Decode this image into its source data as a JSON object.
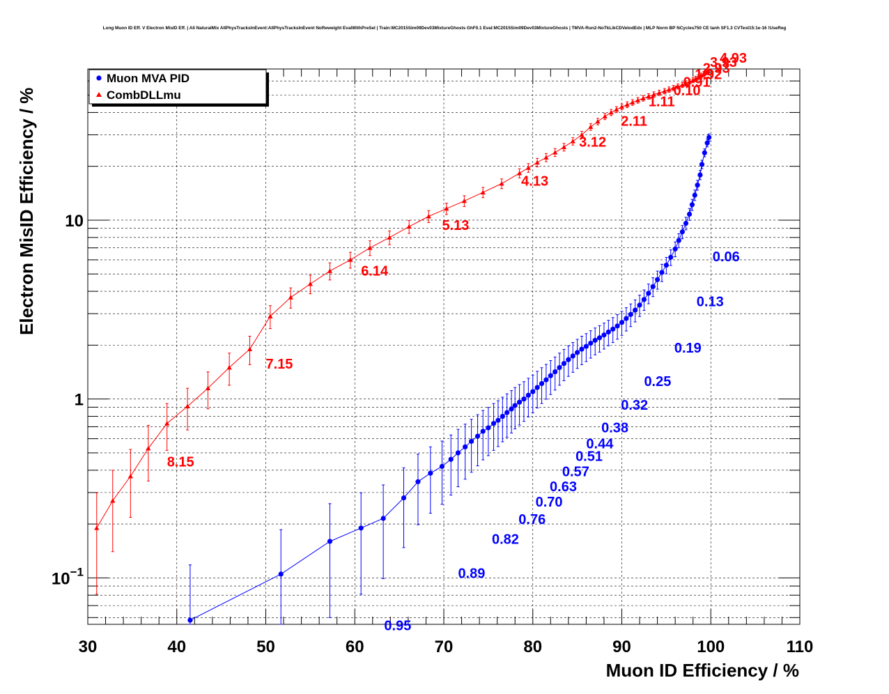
{
  "chart_data": {
    "type": "line",
    "title": "Long Muon ID Eff. V Electron MisID Eff. | All NaturalMix AllPhysTracksInEvent:AllPhysTracksInEvent NoReweight EvalWithPreSel | Train:MC2015Sim09Dev03MixtureGhosts GhF0.1 Eval:MC2015Sim09Dev03MixtureGhosts | TMVA-Run2-NoTkLikCDVelodEdx | MLP Norm BP NCycles750 CE tanh SF1.3 CVTest15:1e-16 !UseReg",
    "xlabel": "Muon ID Efficiency / %",
    "ylabel": "Electron MisID Efficiency / %",
    "xlim": [
      30,
      110
    ],
    "ylim": [
      0.055,
      70
    ],
    "yscale": "log",
    "grid": true,
    "legend_position": "top-left",
    "x_ticks": [
      "30",
      "40",
      "50",
      "60",
      "70",
      "80",
      "90",
      "100",
      "110"
    ],
    "y_ticks": [
      {
        "value": 0.1,
        "label": "10",
        "exp": "−1"
      },
      {
        "value": 1,
        "label": "1",
        "exp": ""
      },
      {
        "value": 10,
        "label": "10",
        "exp": ""
      }
    ],
    "series": [
      {
        "name": "Muon MVA PID",
        "color": "#0000ff",
        "marker": "circle",
        "x": [
          41.5,
          51.7,
          57.2,
          60.7,
          63.2,
          65.5,
          67.1,
          68.5,
          69.8,
          70.8,
          71.6,
          72.4,
          73.1,
          73.8,
          74.4,
          75.0,
          75.6,
          76.1,
          76.6,
          77.1,
          77.6,
          78.0,
          78.5,
          79.0,
          79.5,
          80.0,
          80.5,
          81.0,
          81.5,
          82.0,
          82.5,
          83.0,
          83.5,
          84.0,
          84.5,
          85.0,
          85.5,
          86.0,
          86.5,
          87.0,
          87.5,
          88.0,
          88.5,
          89.0,
          89.5,
          90.0,
          90.5,
          91.0,
          91.5,
          92.0,
          92.5,
          93.0,
          93.5,
          94.0,
          94.5,
          95.0,
          95.5,
          96.0,
          96.4,
          96.8,
          97.2,
          97.6,
          97.9,
          98.2,
          98.5,
          98.8,
          99.0,
          99.3,
          99.6,
          99.8
        ],
        "y": [
          0.058,
          0.105,
          0.16,
          0.19,
          0.215,
          0.28,
          0.345,
          0.385,
          0.42,
          0.46,
          0.5,
          0.54,
          0.58,
          0.62,
          0.66,
          0.69,
          0.73,
          0.76,
          0.8,
          0.84,
          0.88,
          0.92,
          0.96,
          1.0,
          1.05,
          1.1,
          1.16,
          1.22,
          1.28,
          1.35,
          1.42,
          1.5,
          1.58,
          1.66,
          1.74,
          1.82,
          1.9,
          1.97,
          2.05,
          2.13,
          2.2,
          2.28,
          2.37,
          2.46,
          2.56,
          2.68,
          2.82,
          2.97,
          3.14,
          3.35,
          3.6,
          3.9,
          4.25,
          4.65,
          5.1,
          5.6,
          6.2,
          6.9,
          7.7,
          8.6,
          9.6,
          10.8,
          12.2,
          13.8,
          15.7,
          17.9,
          20.5,
          23.8,
          27.0,
          29.0
        ],
        "annotations": [
          {
            "x": 100.2,
            "y": 5.9,
            "text": "0.06"
          },
          {
            "x": 98.4,
            "y": 3.3,
            "text": "0.13"
          },
          {
            "x": 95.9,
            "y": 1.82,
            "text": "0.19"
          },
          {
            "x": 92.5,
            "y": 1.18,
            "text": "0.25"
          },
          {
            "x": 89.9,
            "y": 0.87,
            "text": "0.32"
          },
          {
            "x": 87.7,
            "y": 0.65,
            "text": "0.38"
          },
          {
            "x": 86.0,
            "y": 0.53,
            "text": "0.44"
          },
          {
            "x": 84.8,
            "y": 0.45,
            "text": "0.51"
          },
          {
            "x": 83.3,
            "y": 0.37,
            "text": "0.57"
          },
          {
            "x": 81.9,
            "y": 0.305,
            "text": "0.63"
          },
          {
            "x": 80.3,
            "y": 0.25,
            "text": "0.70"
          },
          {
            "x": 78.4,
            "y": 0.2,
            "text": "0.76"
          },
          {
            "x": 75.4,
            "y": 0.155,
            "text": "0.82"
          },
          {
            "x": 71.6,
            "y": 0.1,
            "text": "0.89"
          },
          {
            "x": 63.3,
            "y": 0.051,
            "text": "0.95"
          }
        ]
      },
      {
        "name": "CombDLLmu",
        "color": "#ff0000",
        "marker": "triangle",
        "x": [
          31.0,
          32.8,
          34.8,
          36.8,
          38.9,
          41.2,
          43.5,
          45.9,
          48.2,
          50.5,
          52.8,
          55.0,
          57.2,
          59.5,
          61.7,
          63.9,
          66.1,
          68.3,
          70.3,
          72.3,
          74.4,
          76.5,
          78.5,
          79.5,
          80.5,
          81.5,
          82.5,
          83.5,
          84.5,
          85.5,
          86.5,
          87.3,
          88.1,
          88.8,
          89.4,
          90.0,
          90.6,
          91.2,
          91.8,
          92.4,
          93.0,
          93.6,
          94.2,
          94.8,
          95.3,
          95.8,
          96.3,
          96.8,
          97.2,
          97.6,
          98.0,
          98.3,
          98.6,
          98.9,
          99.2,
          99.5,
          99.7
        ],
        "y": [
          0.19,
          0.27,
          0.37,
          0.53,
          0.73,
          0.91,
          1.15,
          1.5,
          1.9,
          2.9,
          3.7,
          4.4,
          5.2,
          6.0,
          7.0,
          8.0,
          9.2,
          10.5,
          11.6,
          12.8,
          14.3,
          16.0,
          18.3,
          19.6,
          21.0,
          22.4,
          23.9,
          25.6,
          27.6,
          30.0,
          33.2,
          35.6,
          38.0,
          40.0,
          41.5,
          43.0,
          44.2,
          45.5,
          46.8,
          48.0,
          49.2,
          50.4,
          51.5,
          52.6,
          53.7,
          54.8,
          55.9,
          57.0,
          58.2,
          59.4,
          60.6,
          61.8,
          63.1,
          64.4,
          65.7,
          67.0,
          68.0
        ],
        "annotations": [
          {
            "x": 38.9,
            "y": 0.42,
            "text": "8.15"
          },
          {
            "x": 50.0,
            "y": 1.48,
            "text": "7.15"
          },
          {
            "x": 60.7,
            "y": 4.9,
            "text": "6.14"
          },
          {
            "x": 69.8,
            "y": 8.8,
            "text": "5.13"
          },
          {
            "x": 78.7,
            "y": 15.6,
            "text": "4.13"
          },
          {
            "x": 85.2,
            "y": 25.7,
            "text": "3.12"
          },
          {
            "x": 89.9,
            "y": 33.7,
            "text": "2.11"
          },
          {
            "x": 93.0,
            "y": 43.3,
            "text": "1.11"
          },
          {
            "x": 95.8,
            "y": 50.0,
            "text": "0.10"
          },
          {
            "x": 96.9,
            "y": 55.6,
            "text": "0.91"
          },
          {
            "x": 98.2,
            "y": 61.4,
            "text": "1.92"
          },
          {
            "x": 99.1,
            "y": 66.5,
            "text": "2.93"
          },
          {
            "x": 99.9,
            "y": 72.0,
            "text": "3.93"
          },
          {
            "x": 101.0,
            "y": 76.0,
            "text": "4.93"
          }
        ]
      }
    ]
  }
}
